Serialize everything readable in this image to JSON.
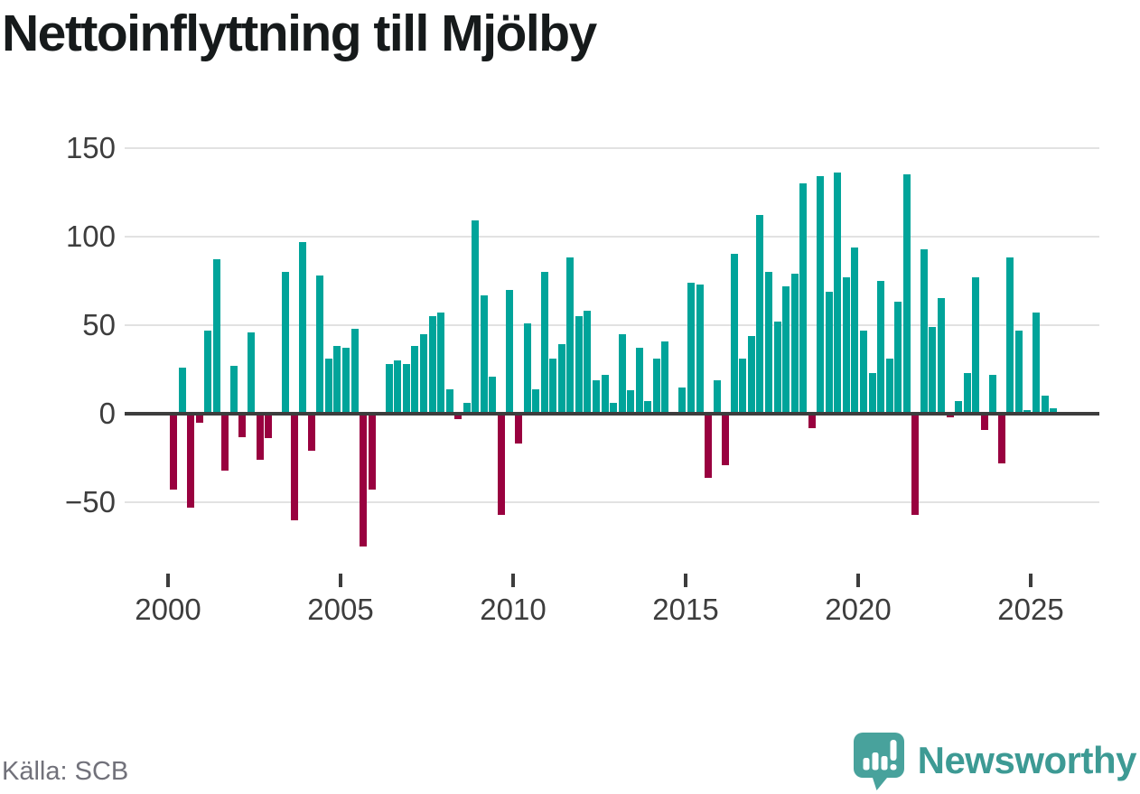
{
  "header": {
    "title": "Nettoinflyttning till Mjölby"
  },
  "footer": {
    "source": "Källa: SCB",
    "brand": "Newsworthy"
  },
  "colors": {
    "positive_bar": "#00a49a",
    "negative_bar": "#99013f",
    "axis": "#3d3d3d",
    "gridline": "#e2e2e2",
    "title_text": "#161a1b",
    "tick_text": "#3d3d3d",
    "source_text": "#71717a",
    "brand_teal": "#3d9a94",
    "logo_icon_teal": "#48a29c"
  },
  "chart_data": {
    "type": "bar",
    "title": "Nettoinflyttning till Mjölby",
    "xlabel": "",
    "ylabel": "",
    "grid": "horizontal",
    "legend": "none",
    "y_ticks": [
      150,
      100,
      50,
      0,
      -50
    ],
    "ylim": [
      -85,
      165
    ],
    "x_tick_years": [
      2000,
      2005,
      2010,
      2015,
      2020,
      2025
    ],
    "x_tick_labels": [
      "2000",
      "2005",
      "2010",
      "2015",
      "2020",
      "2025"
    ],
    "positive_color": "#00a49a",
    "negative_color": "#99013f",
    "categories": [
      "2000 Q1",
      "2000 Q2",
      "2000 Q3",
      "2000 Q4",
      "2001 Q1",
      "2001 Q2",
      "2001 Q3",
      "2001 Q4",
      "2002 Q1",
      "2002 Q2",
      "2002 Q3",
      "2002 Q4",
      "2003 Q1",
      "2003 Q2",
      "2003 Q3",
      "2003 Q4",
      "2004 Q1",
      "2004 Q2",
      "2004 Q3",
      "2004 Q4",
      "2005 Q1",
      "2005 Q2",
      "2005 Q3",
      "2005 Q4",
      "2006 Q1",
      "2006 Q2",
      "2006 Q3",
      "2006 Q4",
      "2007 Q1",
      "2007 Q2",
      "2007 Q3",
      "2007 Q4",
      "2008 Q1",
      "2008 Q2",
      "2008 Q3",
      "2008 Q4",
      "2009 Q1",
      "2009 Q2",
      "2009 Q3",
      "2009 Q4",
      "2010 Q1",
      "2010 Q2",
      "2010 Q3",
      "2010 Q4",
      "2011 Q1",
      "2011 Q2",
      "2011 Q3",
      "2011 Q4",
      "2012 Q1",
      "2012 Q2",
      "2012 Q3",
      "2012 Q4",
      "2013 Q1",
      "2013 Q2",
      "2013 Q3",
      "2013 Q4",
      "2014 Q1",
      "2014 Q2",
      "2014 Q3",
      "2014 Q4",
      "2015 Q1",
      "2015 Q2",
      "2015 Q3",
      "2015 Q4",
      "2016 Q1",
      "2016 Q2",
      "2016 Q3",
      "2016 Q4",
      "2017 Q1",
      "2017 Q2",
      "2017 Q3",
      "2017 Q4",
      "2018 Q1",
      "2018 Q2",
      "2018 Q3",
      "2018 Q4",
      "2019 Q1",
      "2019 Q2",
      "2019 Q3",
      "2019 Q4",
      "2020 Q1",
      "2020 Q2",
      "2020 Q3",
      "2020 Q4",
      "2021 Q1",
      "2021 Q2",
      "2021 Q3",
      "2021 Q4",
      "2022 Q1",
      "2022 Q2",
      "2022 Q3",
      "2022 Q4",
      "2023 Q1",
      "2023 Q2",
      "2023 Q3",
      "2023 Q4",
      "2024 Q1",
      "2024 Q2",
      "2024 Q3",
      "2024 Q4",
      "2025 Q1",
      "2025 Q2",
      "2025 Q3"
    ],
    "values": [
      -43,
      26,
      -53,
      -5,
      47,
      87,
      -32,
      27,
      -13,
      46,
      -26,
      -14,
      0,
      80,
      -60,
      97,
      -21,
      78,
      31,
      38,
      37,
      48,
      -75,
      -43,
      0,
      28,
      30,
      28,
      38,
      45,
      55,
      57,
      14,
      -3,
      6,
      109,
      67,
      21,
      -57,
      70,
      -17,
      51,
      14,
      80,
      31,
      39,
      88,
      55,
      58,
      19,
      22,
      6,
      45,
      13,
      37,
      7,
      31,
      41,
      0,
      15,
      74,
      73,
      -36,
      19,
      -29,
      90,
      31,
      44,
      112,
      80,
      52,
      72,
      79,
      130,
      -8,
      134,
      69,
      136,
      77,
      94,
      47,
      23,
      75,
      31,
      63,
      135,
      -57,
      93,
      49,
      65,
      -2,
      7,
      23,
      77,
      -9,
      22,
      -28,
      88,
      47,
      2,
      57,
      10,
      3
    ]
  }
}
